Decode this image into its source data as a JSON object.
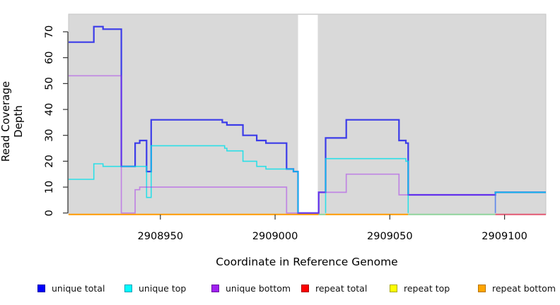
{
  "chart_data": {
    "type": "line",
    "step": true,
    "title": "",
    "xlabel": "Coordinate in Reference Genome",
    "ylabel": "Read Coverage Depth",
    "xlim": [
      2908910,
      2909118
    ],
    "ylim": [
      0,
      77
    ],
    "x_ticks": [
      2908950,
      2909000,
      2909050,
      2909100
    ],
    "y_ticks": [
      0,
      10,
      20,
      30,
      40,
      50,
      60,
      70
    ],
    "panel_background": "#d9d9d9",
    "panel_border": "#c6c6c6",
    "grid": false,
    "legend_position": "bottom",
    "masked_region": {
      "x0": 2909010,
      "x1": 2909018.6,
      "color": "#ffffff"
    },
    "series": [
      {
        "name": "unique total",
        "color": "rgba(32,32,235,0.85)",
        "width": 2.2,
        "draw": true,
        "segments": [
          {
            "points": [
              [
                2908910,
                66
              ],
              [
                2908921,
                72
              ],
              [
                2908925,
                71
              ],
              [
                2908933,
                18
              ],
              [
                2908939,
                27
              ],
              [
                2908941,
                28
              ],
              [
                2908944,
                16
              ],
              [
                2908946,
                36
              ],
              [
                2908977,
                35
              ],
              [
                2908979,
                34
              ],
              [
                2908986,
                30
              ],
              [
                2908992,
                28
              ],
              [
                2908996,
                27
              ],
              [
                2909005,
                17
              ],
              [
                2909008,
                16
              ],
              [
                2909010,
                0
              ],
              [
                2909019,
                8
              ],
              [
                2909022,
                29
              ],
              [
                2909031,
                36
              ],
              [
                2909054,
                28
              ],
              [
                2909057,
                27
              ],
              [
                2909058,
                7
              ],
              [
                2909096,
                8
              ]
            ],
            "end": 2909118
          }
        ]
      },
      {
        "name": "unique top",
        "color": "rgba(0,224,234,0.8)",
        "width": 1.6,
        "draw": true,
        "segments": [
          {
            "points": [
              [
                2908910,
                13
              ],
              [
                2908921,
                19
              ],
              [
                2908925,
                18
              ],
              [
                2908944,
                6
              ],
              [
                2908946,
                26
              ],
              [
                2908978,
                25
              ],
              [
                2908979,
                24
              ],
              [
                2908986,
                20
              ],
              [
                2908992,
                18
              ],
              [
                2908996,
                17
              ],
              [
                2909008,
                16
              ],
              [
                2909010,
                0
              ]
            ],
            "end": 2909010
          },
          {
            "points": [
              [
                2909022,
                0
              ],
              [
                2909022,
                21
              ],
              [
                2909057,
                20
              ],
              [
                2909058,
                0
              ]
            ],
            "end": 2909058
          },
          {
            "points": [
              [
                2909096,
                0
              ],
              [
                2909096,
                8
              ]
            ],
            "end": 2909118
          }
        ]
      },
      {
        "name": "unique bottom",
        "color": "rgba(162,32,240,0.45)",
        "width": 1.7,
        "draw": true,
        "segments": [
          {
            "points": [
              [
                2908910,
                53
              ],
              [
                2908933,
                0
              ],
              [
                2908939,
                9
              ],
              [
                2908941,
                10
              ],
              [
                2909005,
                0
              ],
              [
                2909019,
                8
              ],
              [
                2909031,
                15
              ],
              [
                2909054,
                7
              ],
              [
                2909096,
                0
              ]
            ],
            "end": 2909096
          }
        ]
      },
      {
        "name": "repeat total",
        "color": "#ff0000",
        "width": 1.6,
        "draw": false,
        "segments": [
          {
            "points": [
              [
                2908910,
                0
              ]
            ],
            "end": 2909118
          }
        ]
      },
      {
        "name": "repeat top",
        "color": "#ffff00",
        "width": 1.6,
        "draw": false,
        "segments": [
          {
            "points": [
              [
                2908910,
                0
              ]
            ],
            "end": 2909118
          }
        ]
      },
      {
        "name": "repeat bottom",
        "color": "#ff9a00",
        "width": 2,
        "draw": false,
        "segments": [
          {
            "points": [
              [
                2908910,
                0
              ]
            ],
            "end": 2909118
          }
        ]
      }
    ],
    "zero_line_segments": [
      {
        "x0": 2908910,
        "x1": 2909019,
        "color": "#ff9a00"
      },
      {
        "x0": 2909019,
        "x1": 2909022,
        "color": "#8fd39b"
      },
      {
        "x0": 2909022,
        "x1": 2909058,
        "color": "#ff9a00"
      },
      {
        "x0": 2909058,
        "x1": 2909096,
        "color": "#8fd39b"
      },
      {
        "x0": 2909096,
        "x1": 2909118,
        "color": "#e25872"
      }
    ]
  },
  "axes": {
    "xlabel": "Coordinate in Reference Genome",
    "ylabel": "Read Coverage Depth"
  },
  "legend": {
    "items": [
      {
        "label": "unique total",
        "color": "#0000ff",
        "border": "#0000a8"
      },
      {
        "label": "unique top",
        "color": "#00ffff",
        "border": "#009fb8"
      },
      {
        "label": "unique bottom",
        "color": "#a020f0",
        "border": "#6a14a0"
      },
      {
        "label": "repeat total",
        "color": "#ff0000",
        "border": "#a80000"
      },
      {
        "label": "repeat top",
        "color": "#ffff00",
        "border": "#a8a800"
      },
      {
        "label": "repeat bottom",
        "color": "#ffa500",
        "border": "#b87400"
      }
    ]
  }
}
